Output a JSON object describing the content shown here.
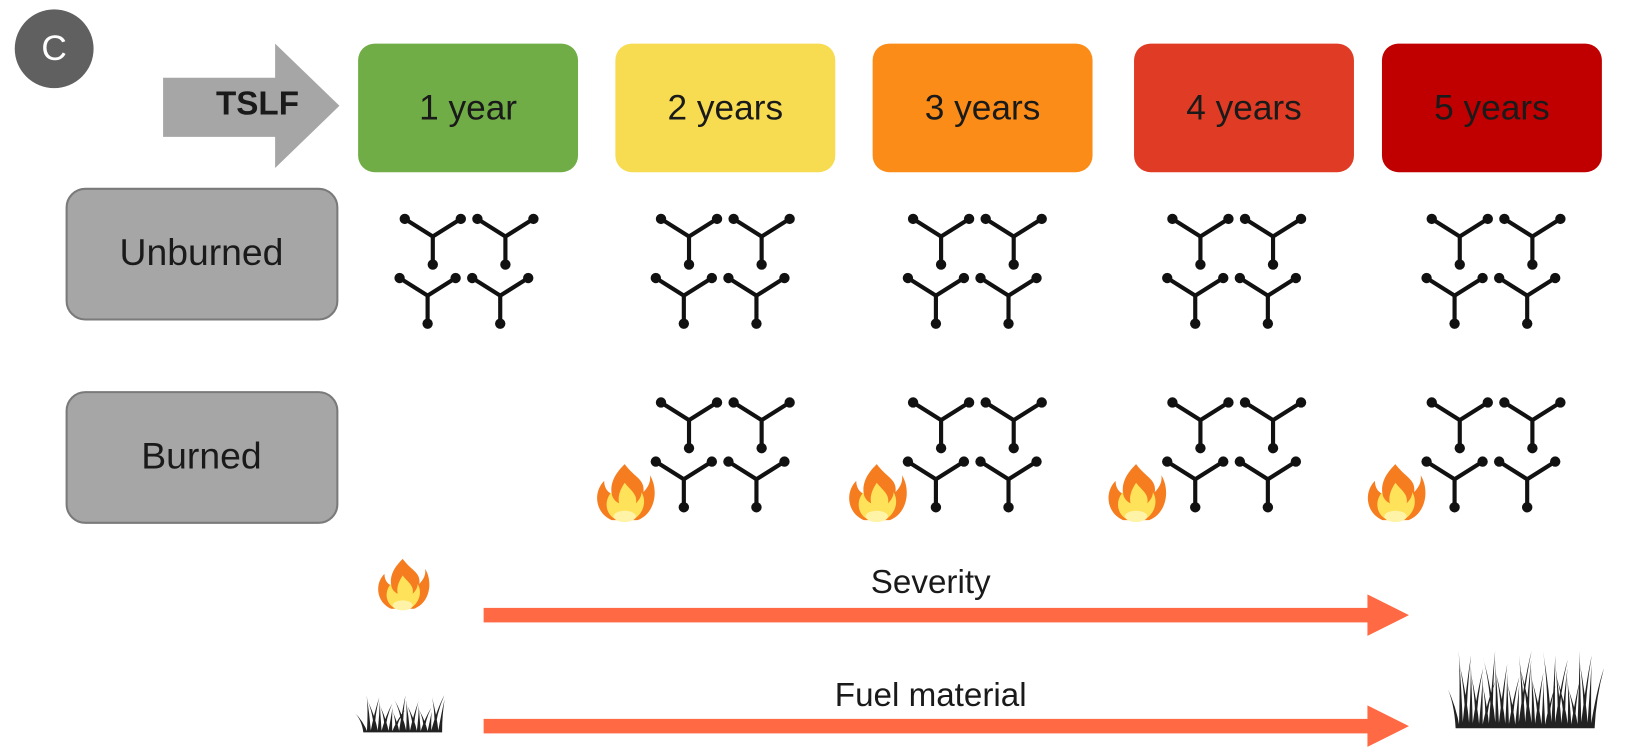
{
  "label": "C",
  "tslf": "TSLF",
  "stages": [
    {
      "label": "1 year",
      "color": "#70ad47"
    },
    {
      "label": "2 years",
      "color": "#f7dc52"
    },
    {
      "label": "3 years",
      "color": "#fb8c17"
    },
    {
      "label": "4 years",
      "color": "#e03b24"
    },
    {
      "label": "5 years",
      "color": "#c00000"
    }
  ],
  "rows": [
    "Unburned",
    "Burned"
  ],
  "arrows": [
    "Severity",
    "Fuel material"
  ]
}
